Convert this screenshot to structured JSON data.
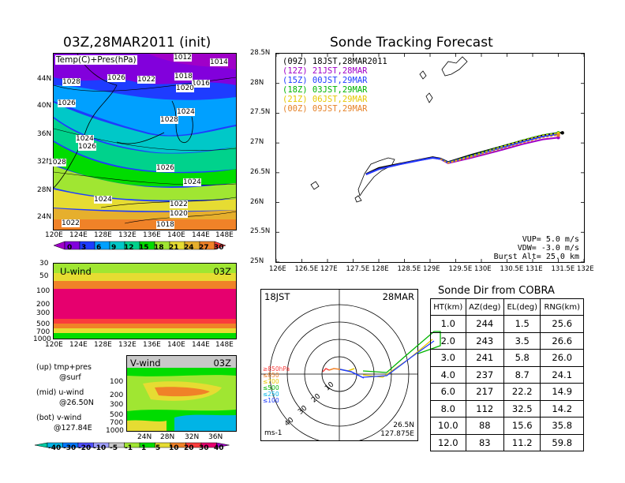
{
  "left_title": "03Z,28MAR2011 (init)",
  "right_title": "Sonde Tracking Forecast",
  "map_overlay_label": "Temp(C)+Pres(hPa)",
  "map_lat_ticks": [
    "44N",
    "40N",
    "36N",
    "32N",
    "28N",
    "24N"
  ],
  "map_lon_ticks": [
    "120E",
    "124E",
    "128E",
    "132E",
    "136E",
    "140E",
    "144E",
    "148E"
  ],
  "isobar_labels": [
    "1012",
    "1014",
    "1028",
    "1026",
    "1022",
    "1018",
    "1016",
    "1020",
    "1026",
    "1028",
    "1024",
    "1024",
    "1026",
    "1028",
    "1026",
    "1024",
    "1024",
    "1022",
    "1020",
    "1018",
    "1022"
  ],
  "temp_colorbar": {
    "ticks": [
      "0",
      "3",
      "6",
      "9",
      "12",
      "15",
      "18",
      "21",
      "24",
      "27",
      "30"
    ],
    "colors": [
      "#a000c8",
      "#8200dc",
      "#1e3cff",
      "#00a0ff",
      "#00c8c8",
      "#00d28c",
      "#00dc00",
      "#a0e632",
      "#e6dc32",
      "#e6af2d",
      "#f08228",
      "#fa3c3c"
    ]
  },
  "uwind_panel": {
    "label": "U-wind",
    "time": "03Z",
    "y_ticks": [
      "30",
      "50",
      "100",
      "200",
      "300",
      "500",
      "700",
      "1000"
    ],
    "x_ticks": [
      "120E",
      "124E",
      "128E",
      "132E",
      "136E",
      "140E",
      "144E",
      "148E"
    ]
  },
  "vwind_panel": {
    "label": "V-wind",
    "time": "03Z",
    "y_ticks": [
      "100",
      "200",
      "300",
      "500",
      "700",
      "1000"
    ],
    "x_ticks": [
      "24N",
      "28N",
      "32N",
      "36N"
    ]
  },
  "notes": {
    "up": "(up) tmp+pres",
    "up2": "@surf",
    "mid": "(mid) u-wind",
    "mid2": "@26.50N",
    "bot": "(bot) v-wind",
    "bot2": "@127.84E"
  },
  "wind_colorbar": {
    "ticks": [
      "-40",
      "-30",
      "-20",
      "-10",
      "-5",
      "-1",
      "1",
      "5",
      "10",
      "20",
      "30",
      "40"
    ],
    "colors": [
      "#00c8a0",
      "#00b4e6",
      "#0078ff",
      "#5050ff",
      "#a0a0ff",
      "#c8c8c8",
      "#a0e632",
      "#00dc00",
      "#e6dc32",
      "#f08228",
      "#fa3c3c",
      "#e6006e",
      "#a000c8"
    ]
  },
  "track_legend": [
    {
      "text": "(09Z)  18JST,28MAR2011",
      "color": "#000000"
    },
    {
      "text": "(12Z)  21JST,28MAR",
      "color": "#a000c8"
    },
    {
      "text": "(15Z)  00JST,29MAR",
      "color": "#1e3cff"
    },
    {
      "text": "(18Z)  03JST,29MAR",
      "color": "#00b400"
    },
    {
      "text": "(21Z)  06JST,29MAR",
      "color": "#e6c800"
    },
    {
      "text": "(00Z)  09JST,29MAR",
      "color": "#e68228"
    }
  ],
  "track_info": {
    "vup": "VUP= 5.0 m/s",
    "vdw": "VDW= -3.0 m/s",
    "burst": "Burst Alt= 25.0 km"
  },
  "polar": {
    "time_label": "18JST",
    "date_label": "28MAR",
    "unit": "ms-1",
    "loc1": "26.5N",
    "loc2": "127.875E",
    "ring_labels": [
      "10",
      "20",
      "30",
      "40"
    ],
    "level_legend": [
      {
        "text": "≥850hPa",
        "color": "#fa3c3c"
      },
      {
        "text": "≤850",
        "color": "#f08228"
      },
      {
        "text": "≤700",
        "color": "#e6c800"
      },
      {
        "text": "≤500",
        "color": "#00b400"
      },
      {
        "text": "≤250",
        "color": "#00b4e6"
      },
      {
        "text": "≤100",
        "color": "#1e3cff"
      }
    ]
  },
  "sonde_table": {
    "title": "Sonde Dir from COBRA",
    "headers": [
      "HT(km)",
      "AZ(deg)",
      "EL(deg)",
      "RNG(km)"
    ],
    "rows": [
      [
        "1.0",
        "244",
        "1.5",
        "25.6"
      ],
      [
        "2.0",
        "243",
        "3.5",
        "26.6"
      ],
      [
        "3.0",
        "241",
        "5.8",
        "26.0"
      ],
      [
        "4.0",
        "237",
        "8.7",
        "24.1"
      ],
      [
        "6.0",
        "217",
        "22.2",
        "14.9"
      ],
      [
        "8.0",
        "112",
        "32.5",
        "14.2"
      ],
      [
        "10.0",
        "88",
        "15.6",
        "35.8"
      ],
      [
        "12.0",
        "83",
        "11.2",
        "59.8"
      ]
    ]
  },
  "chart_data": {
    "type": "line",
    "title": "Sonde Tracking Forecast",
    "xlabel": "",
    "ylabel": "",
    "x_ticks": [
      "126E",
      "126.5E",
      "127E",
      "127.5E",
      "128E",
      "128.5E",
      "129E",
      "129.5E",
      "130E",
      "130.5E",
      "131E",
      "131.5E",
      "132E"
    ],
    "y_ticks": [
      "25N",
      "25.5N",
      "26N",
      "26.5N",
      "27N",
      "27.5N",
      "28N",
      "28.5N"
    ],
    "xlim": [
      126,
      132
    ],
    "ylim": [
      25,
      28.5
    ],
    "series": [
      {
        "name": "(09Z) 18JST,28MAR2011",
        "color": "#000000",
        "style": "solid",
        "x": [
          127.75,
          128.0,
          128.4,
          128.8,
          129.05,
          129.2,
          129.35,
          129.8,
          130.3,
          130.8,
          131.2,
          131.5,
          131.58
        ],
        "y": [
          26.48,
          26.58,
          26.65,
          26.72,
          26.76,
          26.74,
          26.68,
          26.8,
          26.92,
          27.04,
          27.13,
          27.17,
          27.17
        ]
      },
      {
        "name": "(12Z) 21JST,28MAR",
        "color": "#a000c8",
        "style": "solid",
        "x": [
          127.75,
          128.0,
          128.4,
          128.8,
          129.05,
          129.2,
          129.35,
          129.8,
          130.3,
          130.8,
          131.2,
          131.5
        ],
        "y": [
          26.47,
          26.56,
          26.64,
          26.71,
          26.75,
          26.73,
          26.66,
          26.75,
          26.86,
          26.98,
          27.06,
          27.09
        ]
      },
      {
        "name": "(15Z) 00JST,29MAR",
        "color": "#1e3cff",
        "style": "solid",
        "x": [
          127.75,
          128.0,
          128.4,
          128.8,
          129.05,
          129.2,
          129.35,
          129.8,
          130.3,
          130.8,
          131.2,
          131.5
        ],
        "y": [
          26.47,
          26.56,
          26.64,
          26.71,
          26.75,
          26.73,
          26.67,
          26.78,
          26.9,
          27.02,
          27.11,
          27.15
        ]
      },
      {
        "name": "(18Z) 03JST,29MAR",
        "color": "#00b400",
        "style": "dashed",
        "x": [
          129.2,
          129.35,
          129.8,
          130.3,
          130.8,
          131.2,
          131.5
        ],
        "y": [
          26.73,
          26.67,
          26.79,
          26.92,
          27.05,
          27.14,
          27.17
        ]
      },
      {
        "name": "(21Z) 06JST,29MAR",
        "color": "#e6c800",
        "style": "dashed",
        "x": [
          129.2,
          129.35,
          129.8,
          130.3,
          130.8,
          131.2,
          131.5
        ],
        "y": [
          26.73,
          26.67,
          26.78,
          26.91,
          27.04,
          27.13,
          27.16
        ]
      },
      {
        "name": "(00Z) 09JST,29MAR",
        "color": "#e68228",
        "style": "dashed",
        "x": [
          129.2,
          129.35,
          129.8,
          130.3,
          130.8,
          131.2,
          131.5
        ],
        "y": [
          26.73,
          26.66,
          26.76,
          26.88,
          27.0,
          27.09,
          27.13
        ]
      }
    ]
  }
}
